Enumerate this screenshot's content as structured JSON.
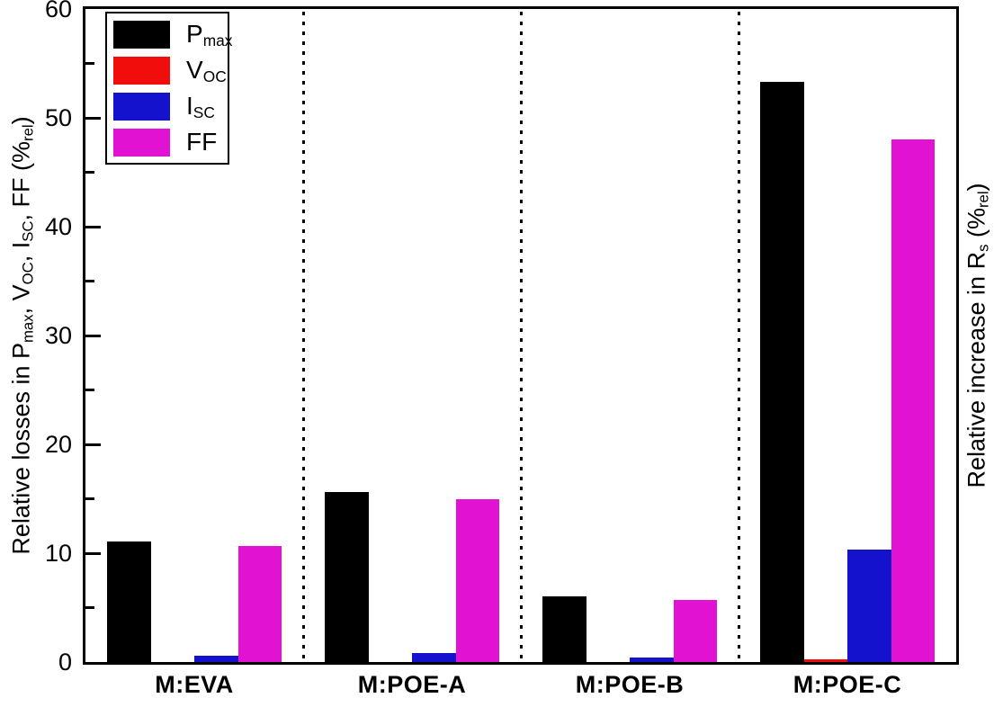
{
  "chart_data": {
    "type": "bar",
    "title": "",
    "categories": [
      "M:EVA",
      "M:POE-A",
      "M:POE-B",
      "M:POE-C"
    ],
    "series": [
      {
        "name": "Pmax",
        "label_parts": [
          {
            "text": "P"
          },
          {
            "text": "max",
            "sub": true
          }
        ],
        "color": "#000000",
        "values": [
          11.1,
          15.6,
          6.0,
          53.3
        ]
      },
      {
        "name": "VOC",
        "label_parts": [
          {
            "text": "V"
          },
          {
            "text": "OC",
            "sub": true
          }
        ],
        "color": "#f20d0d",
        "values": [
          0,
          0,
          0,
          0.25
        ]
      },
      {
        "name": "ISC",
        "label_parts": [
          {
            "text": "I"
          },
          {
            "text": "SC",
            "sub": true
          }
        ],
        "color": "#1412cd",
        "values": [
          0.6,
          0.8,
          0.4,
          10.3
        ]
      },
      {
        "name": "FF",
        "label_parts": [
          {
            "text": "FF"
          }
        ],
        "color": "#e212d2",
        "values": [
          10.7,
          15.0,
          5.7,
          48.0
        ]
      }
    ],
    "ylabel_left": "Relative losses in Pmax, VOC, ISC, FF (%rel)",
    "ylabel_left_parts": [
      {
        "text": "Relative losses in P"
      },
      {
        "text": "max",
        "sub": true
      },
      {
        "text": ", V"
      },
      {
        "text": "OC",
        "sub": true
      },
      {
        "text": ", I"
      },
      {
        "text": "SC",
        "sub": true
      },
      {
        "text": ", FF (%"
      },
      {
        "text": "rel",
        "sub": true
      },
      {
        "text": ")"
      }
    ],
    "ylabel_right": "Relative increase in Rs (%rel)",
    "ylabel_right_parts": [
      {
        "text": "Relative increase in R"
      },
      {
        "text": "s",
        "sub": true
      },
      {
        "text": " (%"
      },
      {
        "text": "rel",
        "sub": true
      },
      {
        "text": ")"
      }
    ],
    "xlabel": "",
    "ylim": [
      0,
      60
    ],
    "yticks": [
      0,
      10,
      20,
      30,
      40,
      50,
      60
    ],
    "y_minor_ticks": [
      5,
      15,
      25,
      35,
      45,
      55
    ],
    "grid": false,
    "legend_position": "top-left",
    "group_separators": "dotted-vertical-lines",
    "axis_color": "#000000",
    "background_color": "#ffffff"
  }
}
